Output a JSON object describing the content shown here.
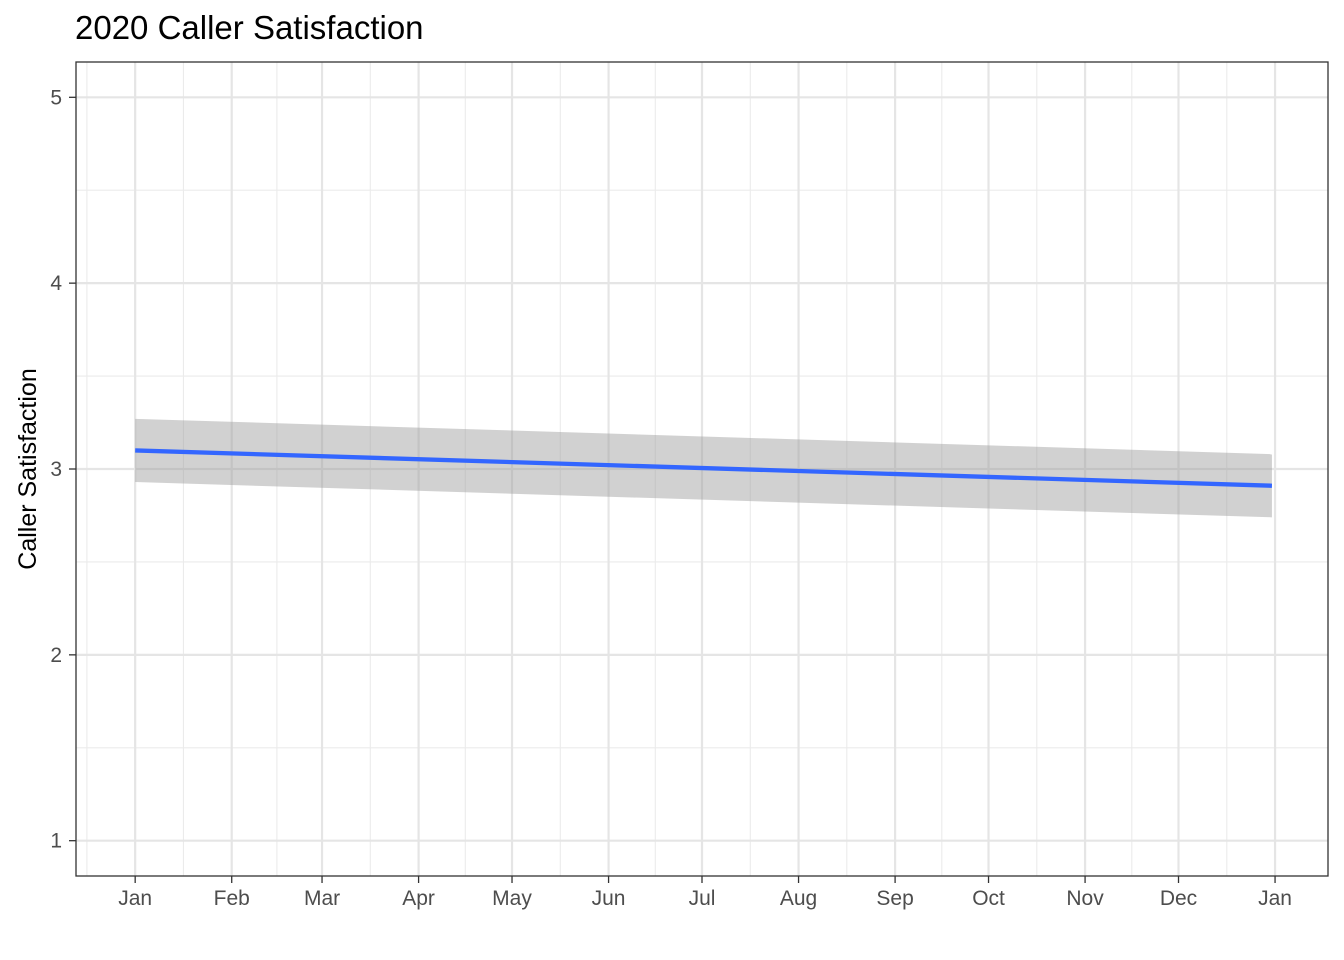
{
  "chart_data": {
    "type": "line",
    "title": "2020 Caller Satisfaction",
    "xlabel": "",
    "ylabel": "Caller Satisfaction",
    "x_tick_labels": [
      "Jan",
      "Feb",
      "Mar",
      "Apr",
      "May",
      "Jun",
      "Jul",
      "Aug",
      "Sep",
      "Oct",
      "Nov",
      "Dec",
      "Jan"
    ],
    "x_ticks": [
      "2020-01-01",
      "2020-02-01",
      "2020-03-01",
      "2020-04-01",
      "2020-05-01",
      "2020-06-01",
      "2020-07-01",
      "2020-08-01",
      "2020-09-01",
      "2020-10-01",
      "2020-11-01",
      "2020-12-01",
      "2021-01-01"
    ],
    "xlim": [
      "2019-12-13",
      "2021-01-18"
    ],
    "y_tick_labels": [
      "1",
      "2",
      "3",
      "4",
      "5"
    ],
    "y_ticks": [
      1,
      2,
      3,
      4,
      5
    ],
    "ylim": [
      0.81,
      5.19
    ],
    "grid": true,
    "series": [
      {
        "x": [
          "2020-01-01",
          "2020-12-31"
        ],
        "y": [
          3.1,
          2.91
        ],
        "ymin": [
          2.93,
          2.74
        ],
        "ymax": [
          3.27,
          3.08
        ],
        "color": "#3366FF"
      }
    ],
    "band_fill": "#999999"
  }
}
